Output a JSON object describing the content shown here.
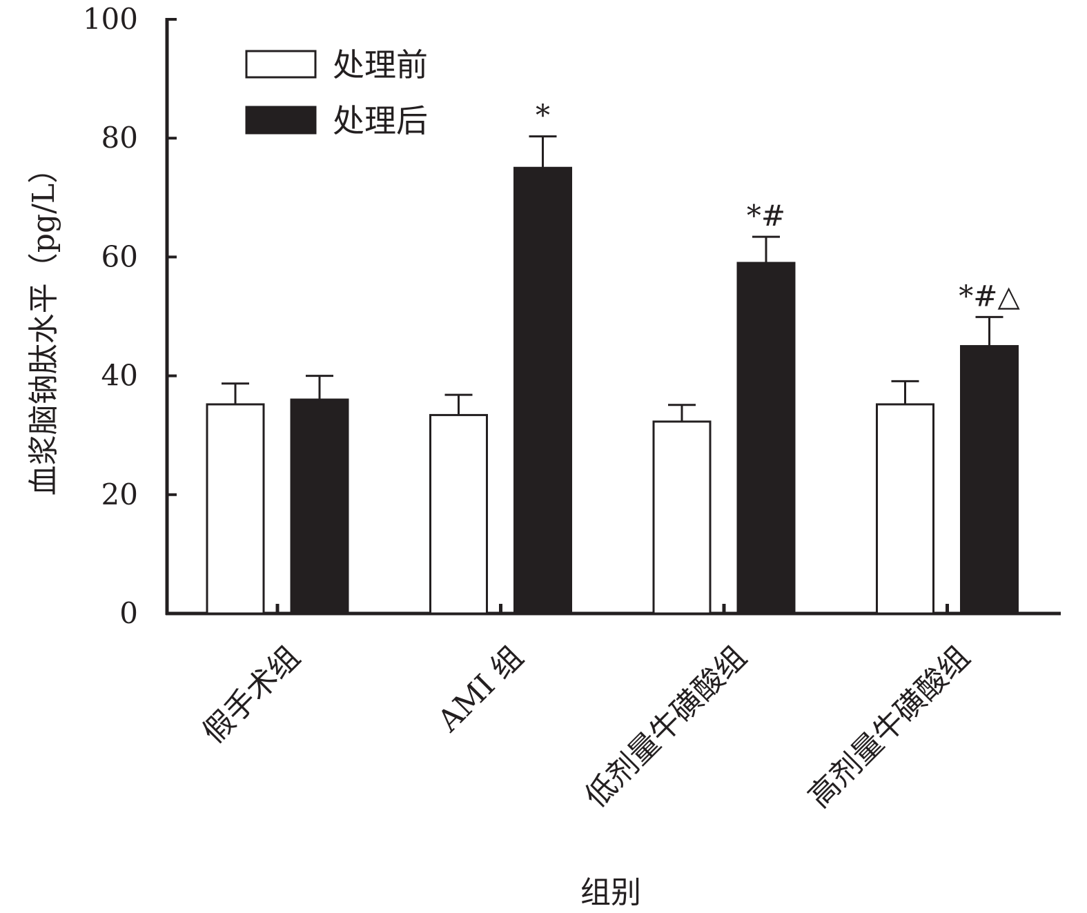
{
  "chart_data": {
    "type": "bar",
    "xlabel": "组别",
    "ylabel": "血浆脑钠肽水平（pg/L）",
    "ylim": [
      0,
      100
    ],
    "yticks": [
      "0",
      "20",
      "40",
      "60",
      "80",
      "100"
    ],
    "categories": [
      "假手术组",
      "AMI 组",
      "低剂量牛磺酸组",
      "高剂量牛磺酸组"
    ],
    "series": [
      {
        "name": "处理前",
        "color": "#ffffff",
        "values": [
          35.2,
          33.4,
          32.3,
          35.2
        ],
        "errors": [
          3.5,
          3.4,
          2.8,
          3.9
        ],
        "annotations": [
          "",
          "",
          "",
          ""
        ]
      },
      {
        "name": "处理后",
        "color": "#231f20",
        "values": [
          36.0,
          75.0,
          59.0,
          45.0
        ],
        "errors": [
          4.0,
          5.3,
          4.4,
          4.9
        ],
        "annotations": [
          "",
          "*",
          "*#",
          "*#△"
        ]
      }
    ],
    "legend_position": "top-left",
    "grid": false
  }
}
